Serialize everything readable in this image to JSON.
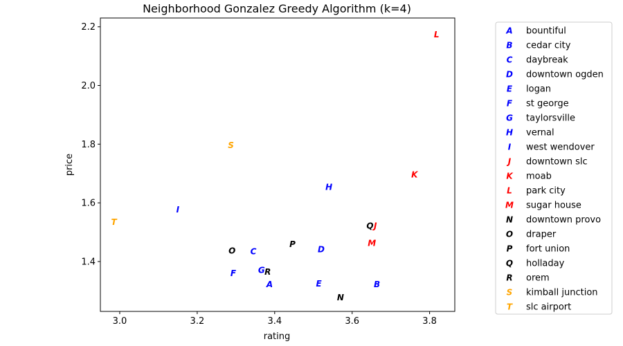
{
  "chart_data": {
    "type": "scatter",
    "title": "Neighborhood Gonzalez Greedy Algorithm (k=4)",
    "xlabel": "rating",
    "ylabel": "price",
    "xlim": [
      2.95,
      3.865
    ],
    "ylim": [
      1.23,
      2.23
    ],
    "xticks": [
      "3.0",
      "3.2",
      "3.4",
      "3.6",
      "3.8"
    ],
    "xtick_values": [
      3.0,
      3.2,
      3.4,
      3.6,
      3.8
    ],
    "yticks": [
      "1.4",
      "1.6",
      "1.8",
      "2.0",
      "2.2"
    ],
    "ytick_values": [
      1.4,
      1.6,
      1.8,
      2.0,
      2.2
    ],
    "grid": false,
    "legend_position": "outside-right",
    "colors": {
      "blue": "#0000ff",
      "red": "#ff0000",
      "black": "#000000",
      "orange": "#ffa500"
    },
    "points": [
      {
        "marker": "A",
        "name": "bountiful",
        "x": 3.387,
        "y": 1.323,
        "color": "#0000ff"
      },
      {
        "marker": "B",
        "name": "cedar city",
        "x": 3.664,
        "y": 1.323,
        "color": "#0000ff"
      },
      {
        "marker": "C",
        "name": "daybreak",
        "x": 3.345,
        "y": 1.435,
        "color": "#0000ff"
      },
      {
        "marker": "D",
        "name": "downtown ogden",
        "x": 3.52,
        "y": 1.442,
        "color": "#0000ff"
      },
      {
        "marker": "E",
        "name": "logan",
        "x": 3.514,
        "y": 1.325,
        "color": "#0000ff"
      },
      {
        "marker": "F",
        "name": "st george",
        "x": 3.293,
        "y": 1.361,
        "color": "#0000ff"
      },
      {
        "marker": "G",
        "name": "taylorsville",
        "x": 3.366,
        "y": 1.371,
        "color": "#0000ff"
      },
      {
        "marker": "H",
        "name": "vernal",
        "x": 3.54,
        "y": 1.654,
        "color": "#0000ff"
      },
      {
        "marker": "I",
        "name": "west wendover",
        "x": 3.15,
        "y": 1.578,
        "color": "#0000ff"
      },
      {
        "marker": "J",
        "name": "downtown slc",
        "x": 3.66,
        "y": 1.523,
        "color": "#ff0000"
      },
      {
        "marker": "K",
        "name": "moab",
        "x": 3.761,
        "y": 1.697,
        "color": "#ff0000"
      },
      {
        "marker": "L",
        "name": "park city",
        "x": 3.818,
        "y": 2.174,
        "color": "#ff0000"
      },
      {
        "marker": "M",
        "name": "sugar house",
        "x": 3.651,
        "y": 1.463,
        "color": "#ff0000"
      },
      {
        "marker": "N",
        "name": "downtown provo",
        "x": 3.57,
        "y": 1.278,
        "color": "#000000"
      },
      {
        "marker": "O",
        "name": "draper",
        "x": 3.29,
        "y": 1.437,
        "color": "#000000"
      },
      {
        "marker": "P",
        "name": "fort union",
        "x": 3.446,
        "y": 1.46,
        "color": "#000000"
      },
      {
        "marker": "Q",
        "name": "holladay",
        "x": 3.646,
        "y": 1.522,
        "color": "#000000"
      },
      {
        "marker": "R",
        "name": "orem",
        "x": 3.382,
        "y": 1.366,
        "color": "#000000"
      },
      {
        "marker": "S",
        "name": "kimball junction",
        "x": 3.287,
        "y": 1.797,
        "color": "#ffa500"
      },
      {
        "marker": "T",
        "name": "slc airport",
        "x": 2.985,
        "y": 1.536,
        "color": "#ffa500"
      }
    ]
  }
}
